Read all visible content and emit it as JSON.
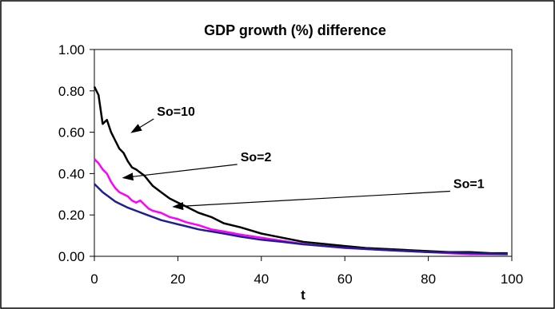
{
  "chart_data": {
    "type": "line",
    "title": "GDP growth (%) difference",
    "xlabel": "t",
    "ylabel": "",
    "xlim": [
      0,
      100
    ],
    "ylim": [
      0,
      1
    ],
    "x_ticks": [
      "0",
      "20",
      "40",
      "60",
      "80",
      "100"
    ],
    "y_ticks": [
      "0.00",
      "0.20",
      "0.40",
      "0.60",
      "0.80",
      "1.00"
    ],
    "grid": false,
    "legend": "none",
    "series": [
      {
        "color": "#000000",
        "points": [
          [
            0,
            0.82
          ],
          [
            1,
            0.78
          ],
          [
            2,
            0.64
          ],
          [
            3,
            0.66
          ],
          [
            4,
            0.6
          ],
          [
            5,
            0.56
          ],
          [
            6,
            0.52
          ],
          [
            7,
            0.5
          ],
          [
            8,
            0.46
          ],
          [
            9,
            0.43
          ],
          [
            10,
            0.42
          ],
          [
            12,
            0.39
          ],
          [
            14,
            0.34
          ],
          [
            16,
            0.31
          ],
          [
            18,
            0.28
          ],
          [
            20,
            0.26
          ],
          [
            22,
            0.24
          ],
          [
            25,
            0.21
          ],
          [
            28,
            0.19
          ],
          [
            31,
            0.16
          ],
          [
            35,
            0.14
          ],
          [
            40,
            0.11
          ],
          [
            45,
            0.09
          ],
          [
            50,
            0.07
          ],
          [
            55,
            0.06
          ],
          [
            60,
            0.05
          ],
          [
            65,
            0.04
          ],
          [
            70,
            0.035
          ],
          [
            75,
            0.03
          ],
          [
            80,
            0.025
          ],
          [
            85,
            0.02
          ],
          [
            90,
            0.02
          ],
          [
            95,
            0.015
          ],
          [
            99,
            0.015
          ]
        ]
      },
      {
        "color": "#ff00ff",
        "points": [
          [
            0,
            0.47
          ],
          [
            1,
            0.45
          ],
          [
            2,
            0.42
          ],
          [
            3,
            0.4
          ],
          [
            4,
            0.36
          ],
          [
            5,
            0.33
          ],
          [
            6,
            0.31
          ],
          [
            7,
            0.3
          ],
          [
            8,
            0.29
          ],
          [
            9,
            0.27
          ],
          [
            10,
            0.26
          ],
          [
            11,
            0.27
          ],
          [
            12,
            0.25
          ],
          [
            13,
            0.23
          ],
          [
            14,
            0.22
          ],
          [
            16,
            0.21
          ],
          [
            18,
            0.19
          ],
          [
            20,
            0.18
          ],
          [
            22,
            0.165
          ],
          [
            25,
            0.15
          ],
          [
            28,
            0.13
          ],
          [
            31,
            0.12
          ],
          [
            35,
            0.105
          ],
          [
            40,
            0.09
          ],
          [
            45,
            0.075
          ],
          [
            50,
            0.06
          ],
          [
            55,
            0.05
          ],
          [
            60,
            0.04
          ],
          [
            65,
            0.035
          ],
          [
            70,
            0.03
          ],
          [
            75,
            0.025
          ],
          [
            80,
            0.02
          ],
          [
            85,
            0.015
          ],
          [
            90,
            0.01
          ],
          [
            95,
            0.01
          ],
          [
            99,
            0.01
          ]
        ]
      },
      {
        "color": "#1f1f8f",
        "points": [
          [
            0,
            0.35
          ],
          [
            1,
            0.33
          ],
          [
            2,
            0.31
          ],
          [
            3,
            0.295
          ],
          [
            4,
            0.28
          ],
          [
            5,
            0.265
          ],
          [
            6,
            0.255
          ],
          [
            7,
            0.245
          ],
          [
            8,
            0.235
          ],
          [
            10,
            0.22
          ],
          [
            12,
            0.205
          ],
          [
            14,
            0.19
          ],
          [
            16,
            0.175
          ],
          [
            18,
            0.165
          ],
          [
            20,
            0.155
          ],
          [
            22,
            0.145
          ],
          [
            25,
            0.13
          ],
          [
            28,
            0.12
          ],
          [
            31,
            0.11
          ],
          [
            35,
            0.095
          ],
          [
            40,
            0.08
          ],
          [
            45,
            0.07
          ],
          [
            50,
            0.058
          ],
          [
            55,
            0.05
          ],
          [
            60,
            0.042
          ],
          [
            65,
            0.035
          ],
          [
            70,
            0.03
          ],
          [
            75,
            0.025
          ],
          [
            80,
            0.02
          ],
          [
            85,
            0.018
          ],
          [
            90,
            0.015
          ],
          [
            95,
            0.012
          ],
          [
            99,
            0.01
          ]
        ]
      }
    ],
    "annotations": [
      {
        "text": "So=10",
        "label_at": [
          15,
          0.68
        ],
        "arrow_to": [
          9,
          0.6
        ]
      },
      {
        "text": "So=2",
        "label_at": [
          35,
          0.46
        ],
        "arrow_to": [
          7,
          0.38
        ]
      },
      {
        "text": "So=1",
        "label_at": [
          86,
          0.33
        ],
        "arrow_to": [
          19,
          0.24
        ]
      }
    ]
  }
}
